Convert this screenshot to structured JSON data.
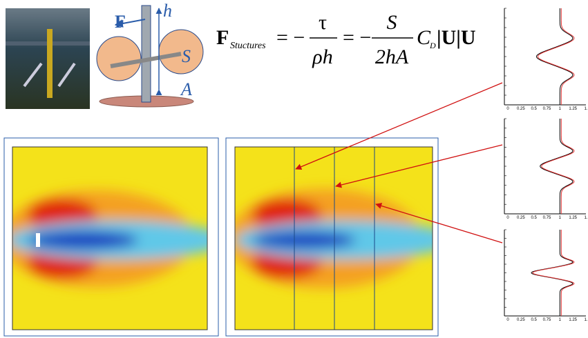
{
  "diagram": {
    "force": "F",
    "height": "h",
    "area_s": "S",
    "area_a": "A"
  },
  "equation": {
    "lhs": "F",
    "lhs_sub": "Stuctures",
    "eq1": "= −",
    "num1": "τ",
    "den1": "ρh",
    "eq2": "= −",
    "num2": "S",
    "den2": "2hA",
    "coef": "C",
    "coef_sub": "D",
    "tail": "|U|U"
  },
  "profiles": {
    "x_tick_labels": [
      "0",
      "0.25",
      "0.5",
      "0.75",
      "1",
      "1.25",
      "1."
    ]
  }
}
